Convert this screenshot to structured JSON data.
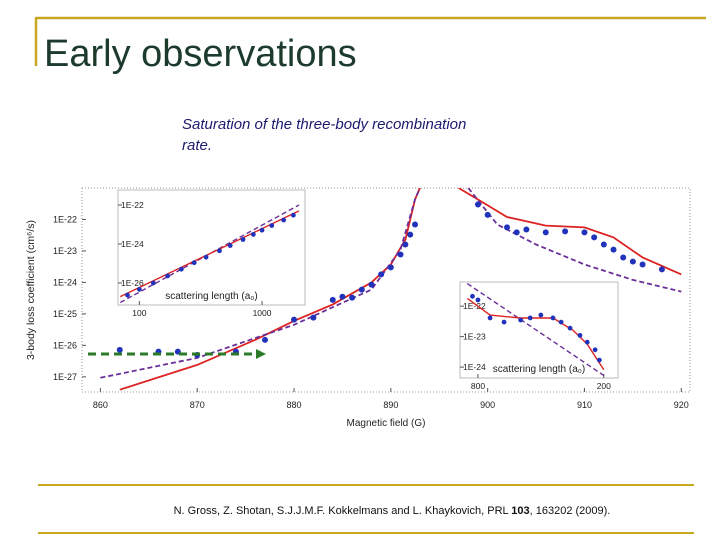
{
  "title": "Early observations",
  "subtitle": [
    "Saturation of the three-body recombination",
    "rate."
  ],
  "citation": {
    "pre": "N. Gross, Z. Shotan, S.J.J.M.F. Kokkelmans and L. Khaykovich, PRL ",
    "volume": "103",
    "post": ", 163202 (2009)."
  },
  "chart_data": [
    {
      "type": "scatter",
      "xlabel": "Magnetic field (G)",
      "ylabel": "3-body loss coefficient (cm⁶/s)",
      "xlim": [
        858.1,
        920.9
      ],
      "xticks": [
        860,
        870,
        880,
        890,
        900,
        910,
        920
      ],
      "ylim": [
        1e-21,
        3.3e-28
      ],
      "ylog": true,
      "yticks": [
        {
          "value": 1e-22,
          "label": "1E-22"
        },
        {
          "value": 1e-23,
          "label": "1E-23"
        },
        {
          "value": 1e-24,
          "label": "1E-24"
        },
        {
          "value": 1e-25,
          "label": "1E-25"
        },
        {
          "value": 1e-26,
          "label": "1E-26"
        },
        {
          "value": 1e-27,
          "label": "1E-27"
        }
      ],
      "series": [
        {
          "color": "#dd2222",
          "kind": "line",
          "x": [
            862,
            870,
            876,
            880,
            884,
            888,
            890,
            891.5,
            892.5,
            893
          ],
          "values": [
            3.9e-28,
            2.4e-27,
            1.5e-26,
            6e-26,
            2e-25,
            1e-24,
            3.7e-24,
            2.3e-23,
            4.3e-22,
            1e-21
          ]
        },
        {
          "color": "#dd2222",
          "kind": "line",
          "x": [
            897,
            899,
            902,
            906,
            910,
            913,
            916,
            920
          ],
          "values": [
            1e-21,
            4.3e-22,
            1.2e-22,
            6.4e-23,
            5.6e-23,
            2.7e-23,
            6.2e-24,
            1.8e-24
          ]
        },
        {
          "color": "#6a2f9a",
          "kind": "line",
          "dashed": true,
          "x": [
            860,
            870,
            880,
            888,
            891,
            892.5,
            893
          ],
          "values": [
            9.3e-28,
            4e-27,
            4.5e-26,
            5.9e-25,
            1.1e-23,
            4.3e-22,
            1e-21
          ]
        },
        {
          "color": "#6a2f9a",
          "kind": "line",
          "dashed": true,
          "x": [
            898,
            901,
            905,
            910,
            915,
            920
          ],
          "values": [
            1e-21,
            6.9e-23,
            1.6e-23,
            3.7e-24,
            1.2e-24,
            5.1e-25
          ]
        },
        {
          "color": "#2233bb",
          "x": [
            862,
            866,
            868,
            870,
            874,
            877,
            880,
            882,
            884,
            885,
            886,
            887,
            888,
            889,
            890,
            891,
            891.5,
            892,
            892.5,
            899,
            900,
            902,
            903,
            904,
            906,
            908,
            910,
            911,
            912,
            913,
            914,
            915,
            916,
            918
          ],
          "values": [
            7.2e-27,
            6.3e-27,
            6.3e-27,
            5e-27,
            6.3e-27,
            1.5e-26,
            6.6e-26,
            7.6e-26,
            2.8e-25,
            3.5e-25,
            3.3e-25,
            5.9e-25,
            8.5e-25,
            1.8e-24,
            3e-24,
            7.7e-24,
            1.6e-23,
            3.3e-23,
            6.9e-23,
            3e-22,
            1.4e-22,
            5.6e-23,
            3.9e-23,
            4.8e-23,
            3.9e-23,
            4.2e-23,
            3.9e-23,
            2.7e-23,
            1.6e-23,
            1.1e-23,
            6.2e-24,
            4.6e-24,
            3.7e-24,
            2.6e-24
          ]
        }
      ]
    },
    {
      "type": "scatter",
      "xlabel": "scattering length (a₀)",
      "xlim": [
        67,
        2240
      ],
      "xlog": true,
      "xticks": [
        100,
        1000
      ],
      "ylim": [
        5.9e-22,
        7.4e-28
      ],
      "ylog": true,
      "yticks": [
        {
          "value": 1e-22,
          "label": "1E-22"
        },
        {
          "value": 1e-24,
          "label": "1E-24"
        },
        {
          "value": 1e-26,
          "label": "1E-26"
        }
      ],
      "series": [
        {
          "color": "#6a2f9a",
          "kind": "line",
          "dashed": true,
          "x": [
            70,
            2000
          ],
          "values": [
            1e-27,
            1e-22
          ]
        },
        {
          "color": "#dd2222",
          "kind": "line",
          "x": [
            70,
            2000
          ],
          "values": [
            2e-27,
            5e-23
          ]
        },
        {
          "color": "#2233bb",
          "x": [
            80,
            100,
            130,
            170,
            220,
            280,
            350,
            450,
            550,
            700,
            850,
            1000,
            1200,
            1500,
            1800
          ],
          "values": [
            2.4e-27,
            4.7e-27,
            1e-26,
            2.3e-26,
            5.1e-26,
            1.1e-25,
            2.1e-25,
            4.5e-25,
            8.3e-25,
            1.7e-24,
            3.1e-24,
            5.1e-24,
            8.9e-24,
            1.7e-23,
            3e-23
          ]
        }
      ]
    },
    {
      "type": "scatter",
      "xlabel": "scattering length (a₀)",
      "xlim": [
        975,
        171
      ],
      "xlog": true,
      "xticks": [
        800,
        200
      ],
      "ylim": [
        6.2e-22,
        4.4e-25
      ],
      "ylog": true,
      "yticks": [
        {
          "value": 1e-22,
          "label": "1E-22"
        },
        {
          "value": 1e-23,
          "label": "1E-23"
        },
        {
          "value": 1e-24,
          "label": "1E-24"
        }
      ],
      "series": [
        {
          "color": "#6a2f9a",
          "kind": "line",
          "dashed": true,
          "x": [
            900,
            200
          ],
          "values": [
            5.5e-22,
            5.3e-25
          ]
        },
        {
          "color": "#dd2222",
          "kind": "line",
          "x": [
            900,
            700,
            500,
            350,
            280,
            240,
            200
          ],
          "values": [
            1.8e-22,
            5.1e-23,
            4.1e-23,
            4.1e-23,
            1.6e-23,
            5.7e-24,
            8.2e-25
          ]
        },
        {
          "color": "#2233bb",
          "x": [
            850,
            800,
            700,
            600,
            500,
            450,
            400,
            350,
            320,
            290,
            260,
            240,
            220,
            210
          ],
          "values": [
            2.1e-22,
            1.6e-22,
            4.1e-23,
            3e-23,
            3.5e-23,
            4.1e-23,
            5.1e-23,
            4.1e-23,
            3e-23,
            1.9e-23,
            1.1e-23,
            6.6e-24,
            3.7e-24,
            1.7e-24
          ]
        }
      ]
    }
  ]
}
